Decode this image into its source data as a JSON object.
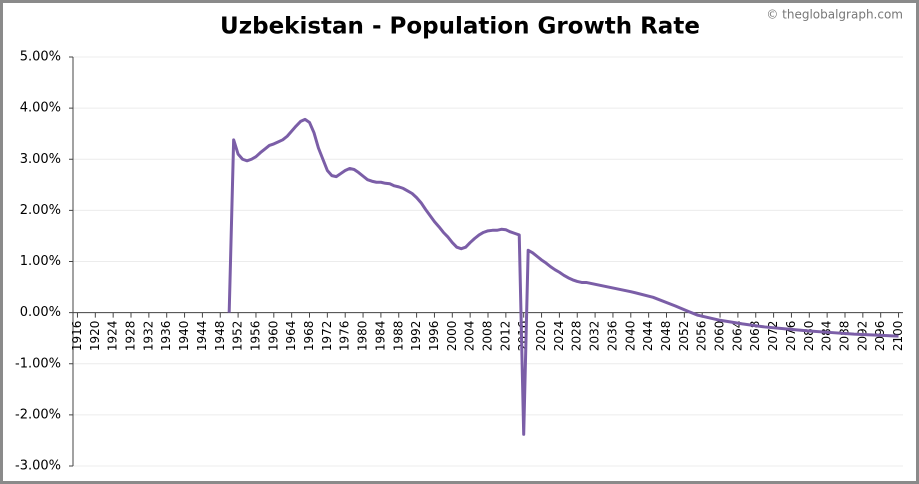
{
  "chart_data": {
    "type": "line",
    "title": "Uzbekistan - Population Growth Rate",
    "watermark": "© theglobalgraph.com",
    "x": [
      1950,
      1951,
      1952,
      1953,
      1954,
      1955,
      1956,
      1957,
      1958,
      1959,
      1960,
      1961,
      1962,
      1963,
      1964,
      1965,
      1966,
      1967,
      1968,
      1969,
      1970,
      1971,
      1972,
      1973,
      1974,
      1975,
      1976,
      1977,
      1978,
      1979,
      1980,
      1981,
      1982,
      1983,
      1984,
      1985,
      1986,
      1987,
      1988,
      1989,
      1990,
      1991,
      1992,
      1993,
      1994,
      1995,
      1996,
      1997,
      1998,
      1999,
      2000,
      2001,
      2002,
      2003,
      2004,
      2005,
      2006,
      2007,
      2008,
      2009,
      2010,
      2011,
      2012,
      2013,
      2014,
      2015,
      2016,
      2017,
      2018,
      2019,
      2020,
      2021,
      2022,
      2023,
      2024,
      2025,
      2026,
      2027,
      2028,
      2029,
      2030,
      2035,
      2040,
      2045,
      2050,
      2053,
      2055,
      2060,
      2065,
      2070,
      2075,
      2080,
      2085,
      2090,
      2095,
      2100
    ],
    "values": [
      0,
      3.38,
      3.1,
      3.0,
      2.97,
      3.0,
      3.05,
      3.13,
      3.2,
      3.27,
      3.3,
      3.34,
      3.38,
      3.45,
      3.55,
      3.65,
      3.74,
      3.78,
      3.72,
      3.52,
      3.22,
      3.0,
      2.78,
      2.68,
      2.66,
      2.72,
      2.78,
      2.82,
      2.8,
      2.74,
      2.67,
      2.6,
      2.57,
      2.55,
      2.55,
      2.53,
      2.52,
      2.48,
      2.46,
      2.43,
      2.38,
      2.33,
      2.25,
      2.15,
      2.02,
      1.9,
      1.78,
      1.68,
      1.57,
      1.48,
      1.37,
      1.28,
      1.25,
      1.28,
      1.37,
      1.45,
      1.52,
      1.57,
      1.6,
      1.61,
      1.61,
      1.63,
      1.62,
      1.58,
      1.55,
      1.52,
      -2.38,
      1.22,
      1.17,
      1.1,
      1.03,
      0.97,
      0.9,
      0.84,
      0.79,
      0.73,
      0.68,
      0.64,
      0.61,
      0.59,
      0.59,
      0.5,
      0.41,
      0.3,
      0.13,
      0.02,
      -0.05,
      -0.15,
      -0.22,
      -0.28,
      -0.32,
      -0.36,
      -0.39,
      -0.42,
      -0.44,
      -0.46
    ],
    "color": "#7b5ea7",
    "xlim": [
      1915,
      2101
    ],
    "xticks": [
      1916,
      1920,
      1924,
      1928,
      1932,
      1936,
      1940,
      1944,
      1948,
      1952,
      1956,
      1960,
      1964,
      1968,
      1972,
      1976,
      1980,
      1984,
      1988,
      1992,
      1996,
      2000,
      2004,
      2008,
      2012,
      2016,
      2020,
      2024,
      2028,
      2032,
      2036,
      2040,
      2044,
      2048,
      2052,
      2056,
      2060,
      2064,
      2068,
      2072,
      2076,
      2080,
      2084,
      2088,
      2092,
      2096,
      2100
    ],
    "ylim": [
      -3,
      5
    ],
    "yticks": [
      {
        "value": -3,
        "label": "-3.00%"
      },
      {
        "value": -2,
        "label": "-2.00%"
      },
      {
        "value": -1,
        "label": "-1.00%"
      },
      {
        "value": 0,
        "label": "0.00%"
      },
      {
        "value": 1,
        "label": "1.00%"
      },
      {
        "value": 2,
        "label": "2.00%"
      },
      {
        "value": 3,
        "label": "3.00%"
      },
      {
        "value": 4,
        "label": "4.00%"
      },
      {
        "value": 5,
        "label": "5.00%"
      }
    ],
    "grid": true
  }
}
